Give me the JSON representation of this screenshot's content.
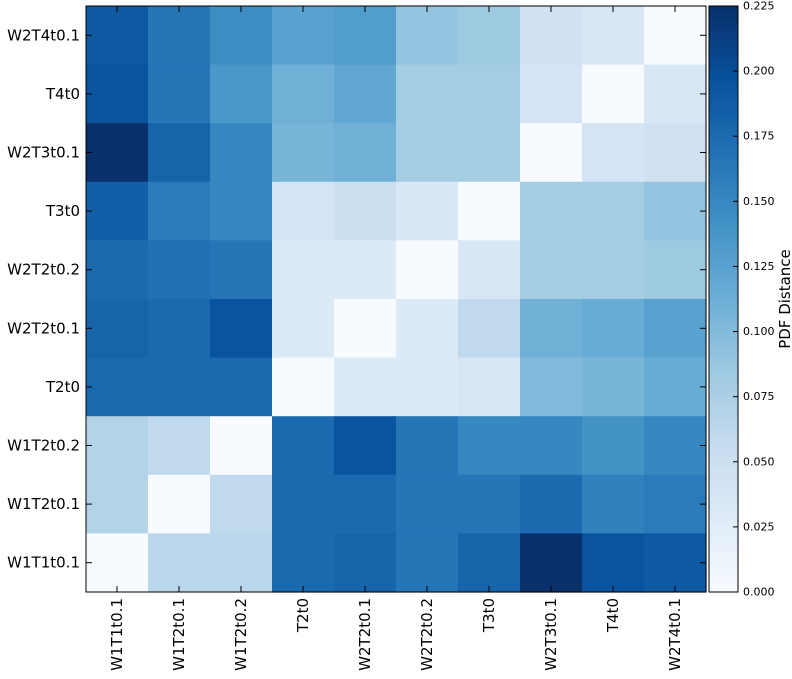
{
  "chart_data": {
    "type": "heatmap",
    "title": "",
    "xlabel": "",
    "ylabel": "",
    "x_categories": [
      "W1T1t0.1",
      "W1T2t0.1",
      "W1T2t0.2",
      "T2t0",
      "W2T2t0.1",
      "W2T2t0.2",
      "T3t0",
      "W2T3t0.1",
      "T4t0",
      "W2T4t0.1"
    ],
    "y_categories_top_to_bottom": [
      "W2T4t0.1",
      "T4t0",
      "W2T3t0.1",
      "T3t0",
      "W2T2t0.2",
      "W2T2t0.1",
      "T2t0",
      "W1T2t0.2",
      "W1T2t0.1",
      "W1T1t0.1"
    ],
    "values": [
      [
        0.19,
        0.165,
        0.145,
        0.125,
        0.13,
        0.09,
        0.085,
        0.045,
        0.035,
        0.0
      ],
      [
        0.195,
        0.165,
        0.135,
        0.11,
        0.12,
        0.08,
        0.08,
        0.04,
        0.0,
        0.035
      ],
      [
        0.225,
        0.18,
        0.15,
        0.105,
        0.11,
        0.08,
        0.08,
        0.0,
        0.04,
        0.045
      ],
      [
        0.185,
        0.16,
        0.15,
        0.04,
        0.05,
        0.035,
        0.0,
        0.08,
        0.08,
        0.09
      ],
      [
        0.175,
        0.17,
        0.165,
        0.03,
        0.03,
        0.0,
        0.035,
        0.08,
        0.08,
        0.085
      ],
      [
        0.18,
        0.175,
        0.195,
        0.03,
        0.0,
        0.03,
        0.06,
        0.11,
        0.115,
        0.125
      ],
      [
        0.175,
        0.175,
        0.175,
        0.0,
        0.03,
        0.03,
        0.035,
        0.1,
        0.105,
        0.115
      ],
      [
        0.07,
        0.06,
        0.0,
        0.175,
        0.195,
        0.165,
        0.15,
        0.15,
        0.14,
        0.15
      ],
      [
        0.07,
        0.0,
        0.06,
        0.175,
        0.175,
        0.165,
        0.165,
        0.175,
        0.155,
        0.16
      ],
      [
        0.0,
        0.065,
        0.065,
        0.175,
        0.18,
        0.165,
        0.18,
        0.225,
        0.195,
        0.19
      ]
    ],
    "colormap": "Blues",
    "colorbar": {
      "label": "PDF Distance",
      "range": [
        0.0,
        0.225
      ],
      "ticks": [
        "0.000",
        "0.025",
        "0.050",
        "0.075",
        "0.100",
        "0.125",
        "0.150",
        "0.175",
        "0.200",
        "0.225"
      ]
    },
    "grid": false,
    "legend": "none"
  }
}
